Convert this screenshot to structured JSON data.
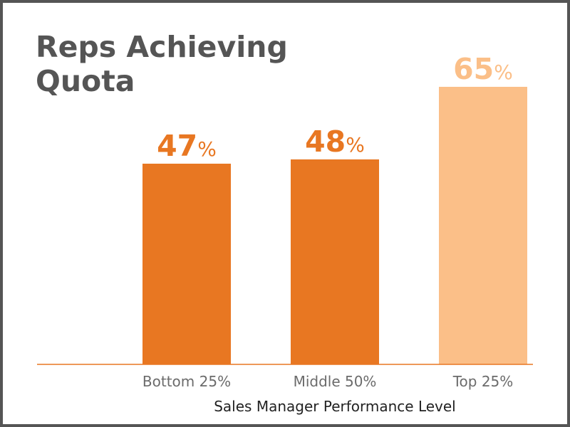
{
  "chart_data": {
    "type": "bar",
    "title": "Reps Achieving Quota",
    "xlabel": "Sales Manager Performance Level",
    "ylabel": "",
    "categories": [
      "Bottom 25%",
      "Middle 50%",
      "Top 25%"
    ],
    "values": [
      47,
      48,
      65
    ],
    "value_labels": [
      "47",
      "48",
      "65"
    ],
    "value_unit": "%",
    "ylim": [
      0,
      100
    ],
    "grid": false,
    "legend": "none",
    "bar_colors": [
      "#e87722",
      "#e87722",
      "#fbbf88"
    ],
    "axis_color": "#e87722"
  }
}
